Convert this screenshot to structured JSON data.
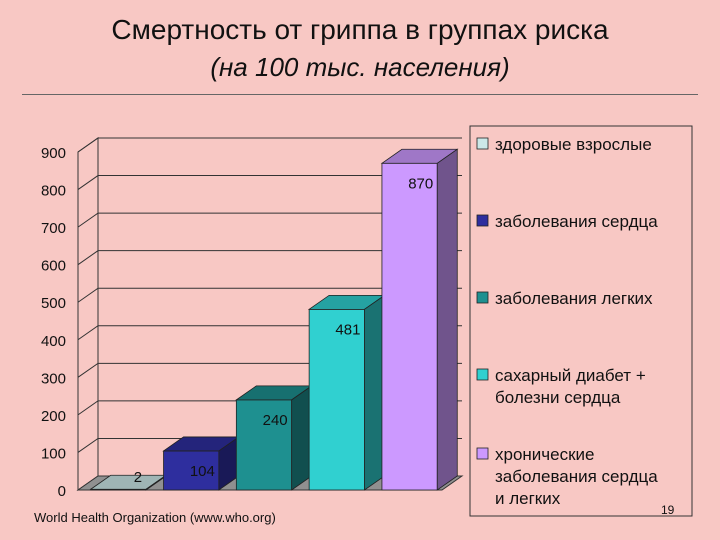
{
  "slide": {
    "title": "Смертность от гриппа в группах риска",
    "subtitle": "(на 100 тыс. населения)",
    "source": "World Health Organization (www.who.org)",
    "page_number": "19"
  },
  "chart_data": {
    "type": "bar",
    "title": "",
    "xlabel": "",
    "ylabel": "",
    "ylim": [
      0,
      900
    ],
    "y_ticks": [
      0,
      100,
      200,
      300,
      400,
      500,
      600,
      700,
      800,
      900
    ],
    "grid": true,
    "style": "3d",
    "legend_position": "right",
    "categories": [
      "здоровые взрослые",
      "заболевания сердца",
      "заболевания легких",
      "сахарный диабет + болезни сердца",
      "хронические заболевания сердца и легких"
    ],
    "series": [
      {
        "values": [
          2,
          104,
          240,
          481,
          870
        ]
      }
    ],
    "data_labels": [
      "2",
      "104",
      "240",
      "481",
      "870"
    ],
    "legend": [
      {
        "lines": [
          "здоровые взрослые"
        ],
        "color": "#cce8e8"
      },
      {
        "lines": [
          "заболевания сердца"
        ],
        "color": "#2e2e9e"
      },
      {
        "lines": [
          "заболевания легких"
        ],
        "color": "#1e9090"
      },
      {
        "lines": [
          "сахарный диабет +",
          "болезни сердца"
        ],
        "color": "#30d0d0"
      },
      {
        "lines": [
          "хронические",
          "заболевания сердца",
          "и легких"
        ],
        "color": "#cc99ff"
      }
    ],
    "bar_colors": [
      "#cce8e8",
      "#2e2e9e",
      "#1e9090",
      "#30d0d0",
      "#cc99ff"
    ]
  }
}
